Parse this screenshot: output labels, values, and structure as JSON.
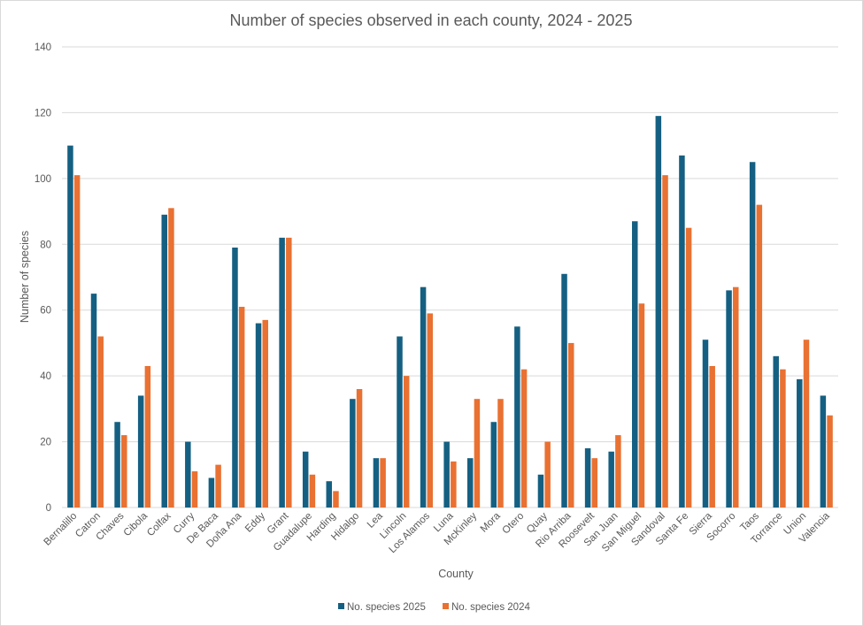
{
  "chart_data": {
    "type": "bar",
    "title": "Number of species observed in each county, 2024 - 2025",
    "xlabel": "County",
    "ylabel": "Number of species",
    "ylim": [
      0,
      140
    ],
    "yticks": [
      0,
      20,
      40,
      60,
      80,
      100,
      120,
      140
    ],
    "grid": true,
    "legend_position": "bottom",
    "categories": [
      "Bernalillo",
      "Catron",
      "Chaves",
      "Cibola",
      "Colfax",
      "Curry",
      "De Baca",
      "Doña Ana",
      "Eddy",
      "Grant",
      "Guadalupe",
      "Harding",
      "Hidalgo",
      "Lea",
      "Lincoln",
      "Los Alamos",
      "Luna",
      "McKinley",
      "Mora",
      "Otero",
      "Quay",
      "Rio Arriba",
      "Roosevelt",
      "San Juan",
      "San Miguel",
      "Sandoval",
      "Santa Fe",
      "Sierra",
      "Socorro",
      "Taos",
      "Torrance",
      "Union",
      "Valencia"
    ],
    "series": [
      {
        "name": "No. species 2025",
        "color": "#156082",
        "values": [
          110,
          65,
          26,
          34,
          89,
          20,
          9,
          79,
          56,
          82,
          17,
          8,
          33,
          15,
          52,
          67,
          20,
          15,
          26,
          55,
          10,
          71,
          18,
          17,
          87,
          119,
          107,
          51,
          66,
          105,
          46,
          39,
          34
        ]
      },
      {
        "name": "No. species 2024",
        "color": "#E97132",
        "values": [
          101,
          52,
          22,
          43,
          91,
          11,
          13,
          61,
          57,
          82,
          10,
          5,
          36,
          15,
          40,
          59,
          14,
          33,
          33,
          42,
          20,
          50,
          15,
          22,
          62,
          101,
          85,
          43,
          67,
          92,
          42,
          51,
          28
        ]
      }
    ]
  }
}
